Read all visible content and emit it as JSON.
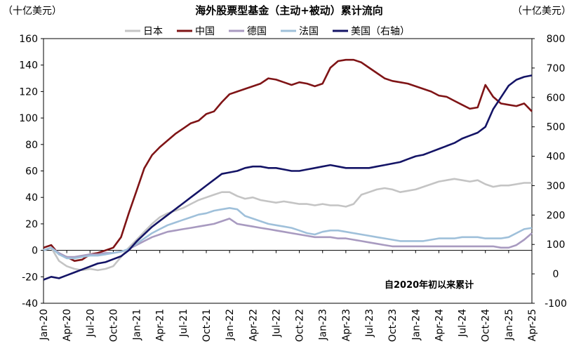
{
  "chart_data": {
    "type": "line",
    "title": "海外股票型基金（主动+被动）累计流向",
    "y_label": "（十亿美元）",
    "y2_label": "（十亿美元）",
    "annotation": "自2020年初以来累计",
    "categories": [
      "Jan-20",
      null,
      null,
      "Apr-20",
      null,
      null,
      "Jul-20",
      null,
      null,
      "Oct-20",
      null,
      null,
      "Jan-21",
      null,
      null,
      "Apr-21",
      null,
      null,
      "Jul-21",
      null,
      null,
      "Oct-21",
      null,
      null,
      "Jan-22",
      null,
      null,
      "Apr-22",
      null,
      null,
      "Jul-22",
      null,
      null,
      "Oct-22",
      null,
      null,
      "Jan-23",
      null,
      null,
      "Apr-23",
      null,
      null,
      "Jul-23",
      null,
      null,
      "Oct-23",
      null,
      null,
      "Jan-24",
      null,
      null,
      "Apr-24",
      null,
      null,
      "Jul-24",
      null,
      null,
      "Oct-24",
      null,
      null,
      "Jan-25",
      null,
      null,
      "Apr-25"
    ],
    "series": [
      {
        "name": "日本",
        "color": "#c4c4c4",
        "values": [
          0,
          2,
          -8,
          -12,
          -14,
          -15,
          -14,
          -15,
          -14,
          -12,
          -5,
          2,
          8,
          14,
          20,
          25,
          28,
          30,
          32,
          35,
          38,
          40,
          42,
          44,
          44,
          41,
          39,
          40,
          38,
          37,
          36,
          37,
          36,
          35,
          35,
          34,
          35,
          34,
          34,
          33,
          35,
          42,
          44,
          46,
          47,
          46,
          44,
          45,
          46,
          48,
          50,
          52,
          53,
          54,
          53,
          52,
          53,
          50,
          48,
          49,
          49,
          50,
          51,
          51
        ]
      },
      {
        "name": "中国",
        "color": "#7f1416",
        "values": [
          2,
          4,
          -3,
          -5,
          -8,
          -7,
          -3,
          -2,
          0,
          2,
          10,
          28,
          45,
          62,
          72,
          78,
          83,
          88,
          92,
          96,
          98,
          103,
          105,
          112,
          118,
          120,
          122,
          124,
          126,
          130,
          129,
          127,
          125,
          127,
          126,
          124,
          126,
          138,
          143,
          144,
          144,
          142,
          138,
          134,
          130,
          128,
          127,
          126,
          124,
          122,
          120,
          117,
          116,
          113,
          110,
          107,
          108,
          125,
          116,
          111,
          110,
          109,
          111,
          105
        ]
      },
      {
        "name": "德国",
        "color": "#a89ac0",
        "values": [
          0,
          2,
          -2,
          -5,
          -5,
          -4,
          -3,
          -3,
          -2,
          -2,
          -1,
          1,
          4,
          7,
          10,
          12,
          14,
          15,
          16,
          17,
          18,
          19,
          20,
          22,
          24,
          20,
          19,
          18,
          17,
          16,
          15,
          14,
          13,
          12,
          11,
          10,
          10,
          10,
          9,
          9,
          8,
          7,
          6,
          5,
          4,
          3,
          3,
          3,
          3,
          3,
          3,
          3,
          3,
          3,
          3,
          3,
          3,
          3,
          3,
          2,
          2,
          4,
          8,
          13
        ]
      },
      {
        "name": "法国",
        "color": "#9fc0da",
        "values": [
          0,
          2,
          -3,
          -6,
          -6,
          -5,
          -4,
          -4,
          -3,
          -2,
          -1,
          1,
          5,
          9,
          13,
          16,
          19,
          21,
          23,
          25,
          27,
          28,
          30,
          31,
          32,
          31,
          26,
          24,
          22,
          20,
          19,
          18,
          17,
          15,
          13,
          12,
          14,
          15,
          15,
          14,
          13,
          12,
          11,
          10,
          9,
          8,
          7,
          7,
          7,
          7,
          8,
          9,
          9,
          9,
          10,
          10,
          10,
          9,
          9,
          9,
          10,
          13,
          16,
          17
        ]
      },
      {
        "name": "美国（右轴）",
        "color": "#141466",
        "axis": "y2",
        "values": [
          -20,
          -10,
          -15,
          -5,
          5,
          15,
          25,
          35,
          40,
          50,
          60,
          80,
          110,
          135,
          160,
          180,
          200,
          220,
          240,
          260,
          280,
          300,
          320,
          340,
          345,
          350,
          360,
          365,
          365,
          360,
          360,
          355,
          350,
          350,
          355,
          360,
          365,
          370,
          365,
          360,
          360,
          360,
          360,
          365,
          370,
          375,
          380,
          390,
          400,
          405,
          415,
          425,
          435,
          445,
          460,
          470,
          480,
          500,
          560,
          600,
          640,
          660,
          670,
          675
        ]
      }
    ],
    "ylim": [
      -40,
      160
    ],
    "yticks": [
      -40,
      -20,
      0,
      20,
      40,
      60,
      80,
      100,
      120,
      140,
      160
    ],
    "y2lim": [
      -100,
      800
    ],
    "y2ticks": [
      -100,
      0,
      100,
      200,
      300,
      400,
      500,
      600,
      700,
      800
    ],
    "legend": "top"
  }
}
